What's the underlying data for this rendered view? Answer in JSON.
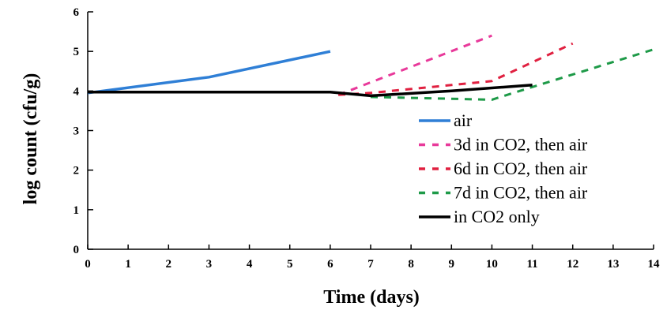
{
  "chart_data": {
    "type": "line",
    "title": "",
    "xlabel": "Time (days)",
    "ylabel": "log count (cfu/g)",
    "xlim": [
      0,
      14
    ],
    "ylim": [
      0,
      6
    ],
    "x_ticks": [
      0,
      1,
      2,
      3,
      4,
      5,
      6,
      7,
      8,
      9,
      10,
      11,
      12,
      13,
      14
    ],
    "y_ticks": [
      0,
      1,
      2,
      3,
      4,
      5,
      6
    ],
    "grid": false,
    "legend_position": "right",
    "series": [
      {
        "name": "air",
        "color": "#2f7fd6",
        "style": "solid",
        "points": [
          [
            0,
            3.95
          ],
          [
            3,
            4.35
          ],
          [
            6,
            5.0
          ]
        ]
      },
      {
        "name": "3d in CO2, then air",
        "color": "#e8399a",
        "style": "dashed",
        "points": [
          [
            6.2,
            3.9
          ],
          [
            10,
            5.4
          ]
        ]
      },
      {
        "name": "6d in CO2, then air",
        "color": "#e02040",
        "style": "dashed",
        "points": [
          [
            6.2,
            3.9
          ],
          [
            7,
            3.95
          ],
          [
            10,
            4.25
          ],
          [
            12,
            5.2
          ]
        ]
      },
      {
        "name": "7d in CO2, then air",
        "color": "#1e9a48",
        "style": "dashed",
        "points": [
          [
            7,
            3.85
          ],
          [
            10,
            3.78
          ],
          [
            11,
            4.1
          ],
          [
            14,
            5.05
          ]
        ]
      },
      {
        "name": "in CO2  only",
        "color": "#000000",
        "style": "solid",
        "points": [
          [
            0,
            3.97
          ],
          [
            6,
            3.97
          ],
          [
            7,
            3.88
          ],
          [
            9,
            4.0
          ],
          [
            11,
            4.15
          ]
        ]
      }
    ]
  }
}
